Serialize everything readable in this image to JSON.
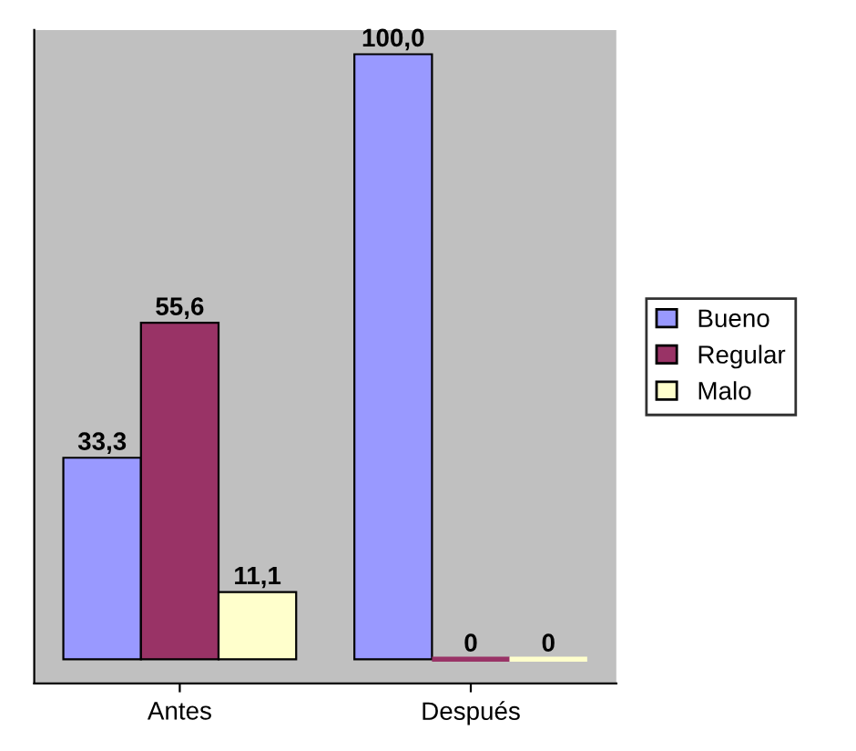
{
  "chart_data": {
    "type": "bar",
    "categories": [
      "Antes",
      "Después"
    ],
    "series": [
      {
        "name": "Bueno",
        "color": "#9999ff",
        "values": [
          33.3,
          100.0
        ],
        "value_labels": [
          "33,3",
          "100,0"
        ]
      },
      {
        "name": "Regular",
        "color": "#993366",
        "values": [
          55.6,
          0
        ],
        "value_labels": [
          "55,6",
          "0"
        ]
      },
      {
        "name": "Malo",
        "color": "#ffffcc",
        "values": [
          11.1,
          0
        ],
        "value_labels": [
          "11,1",
          "0"
        ]
      }
    ],
    "legend": "right",
    "grid": false
  }
}
